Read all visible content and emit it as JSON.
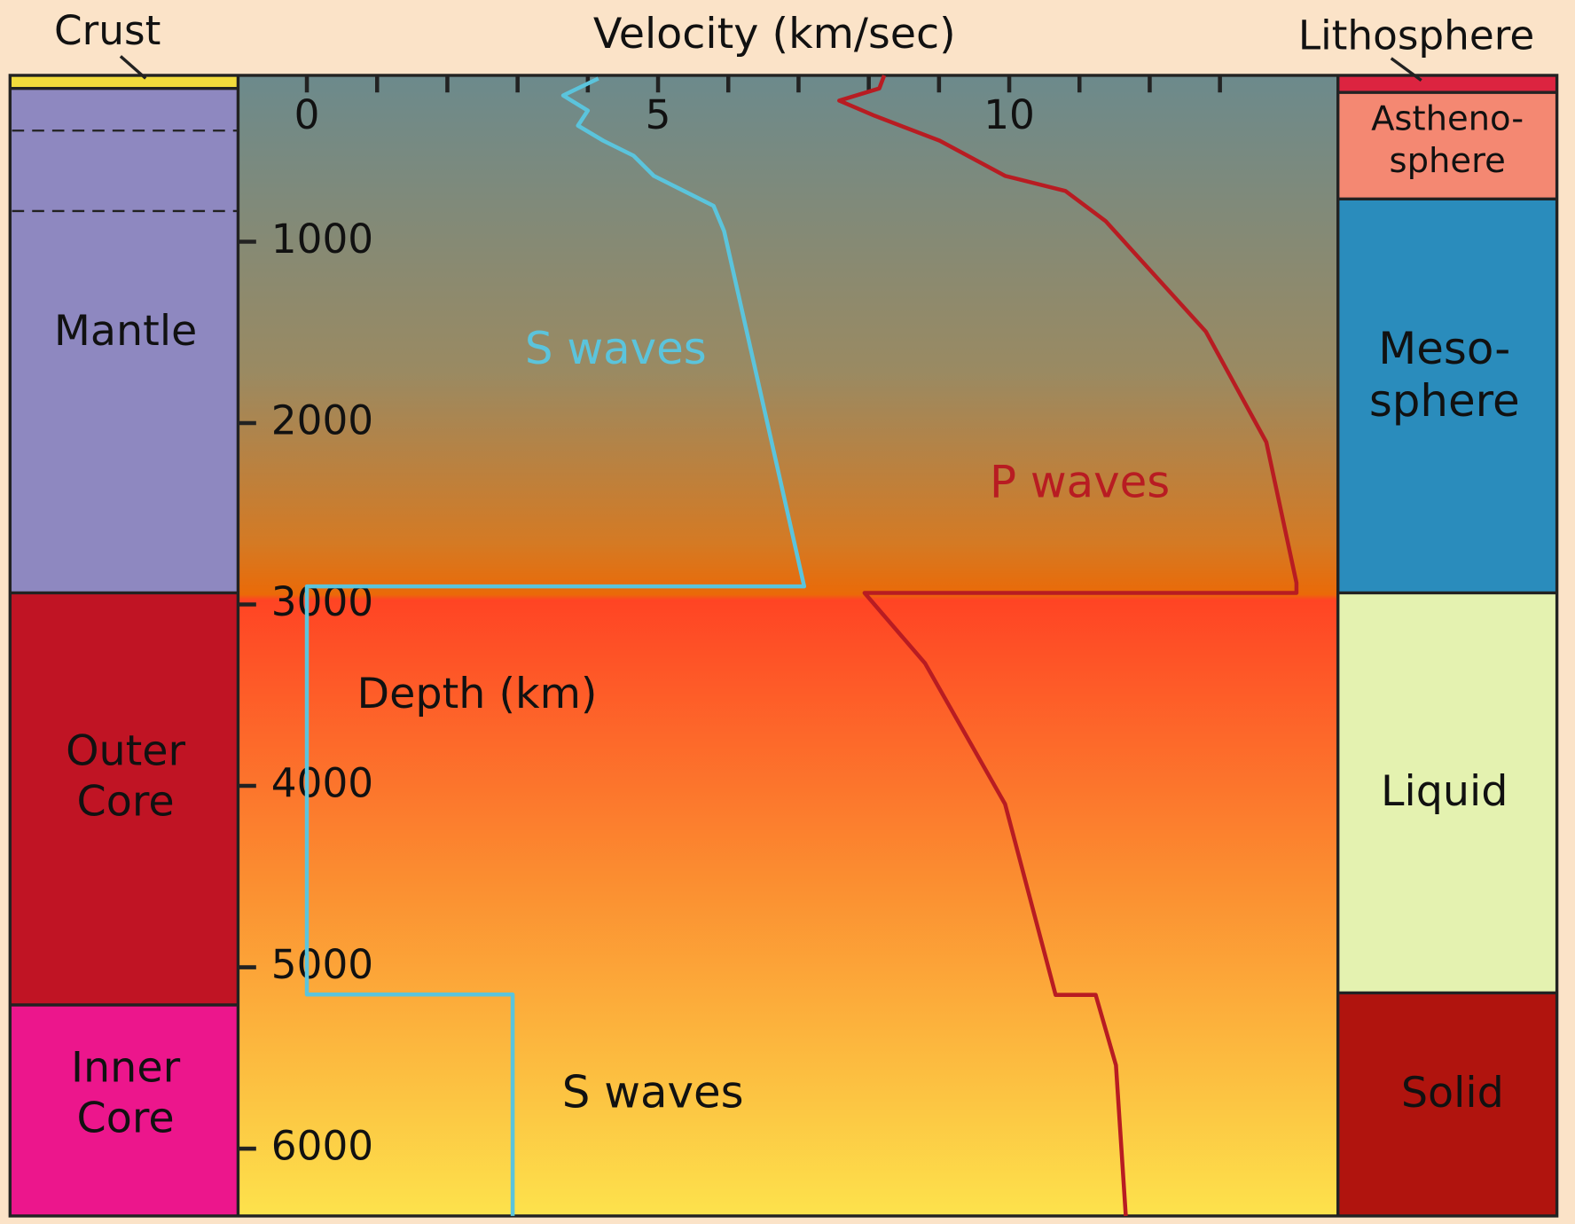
{
  "chart_data": {
    "type": "line",
    "x_label": "Velocity (km/sec)",
    "y_label": "Depth (km)",
    "xlim": [
      -0.98,
      14.68
    ],
    "xticks": [
      0,
      5,
      10
    ],
    "xminor": [
      1,
      2,
      3,
      4,
      6,
      7,
      8,
      9,
      11,
      12,
      13
    ],
    "ylim": [
      0,
      6371
    ],
    "yticks": [
      1000,
      2000,
      3000,
      4000,
      5000,
      6000
    ],
    "series": [
      {
        "name": "S waves",
        "color": "#5bc4dc",
        "values": [
          4.15,
          3.65,
          4.0,
          3.86,
          4.22,
          4.65,
          4.94,
          5.51,
          5.79,
          5.94,
          7.08,
          0,
          0,
          2.93,
          2.93
        ],
        "depth": [
          100,
          194,
          277,
          360,
          443,
          526,
          637,
          748,
          803,
          942,
          2900,
          2900,
          5150,
          5150,
          6371
        ]
      },
      {
        "name": "P waves",
        "color": "#b81c22",
        "values": [
          8.22,
          8.15,
          7.58,
          8.08,
          9.01,
          9.94,
          10.8,
          11.37,
          12.8,
          13.66,
          14.09,
          14.09,
          7.94,
          8.8,
          9.94,
          10.66,
          11.23,
          11.52,
          11.66
        ],
        "depth": [
          83,
          155,
          222,
          305,
          443,
          637,
          720,
          886,
          1496,
          2105,
          2881,
          2936,
          2936,
          3324,
          4100,
          5152,
          5152,
          5540,
          6371
        ]
      }
    ],
    "annotations": [
      "S waves",
      "P waves",
      "S waves"
    ]
  },
  "left_layers": [
    {
      "lines": [
        "Crust"
      ]
    },
    {
      "lines": [
        "Mantle"
      ]
    },
    {
      "lines": [
        "Outer",
        "Core"
      ]
    },
    {
      "lines": [
        "Inner",
        "Core"
      ]
    }
  ],
  "right_layers": [
    {
      "lines": [
        "Lithosphere"
      ]
    },
    {
      "lines": [
        "Astheno-",
        "sphere"
      ]
    },
    {
      "lines": [
        "Meso-",
        "sphere"
      ]
    },
    {
      "lines": [
        "Liquid"
      ]
    },
    {
      "lines": [
        "Solid"
      ]
    }
  ]
}
